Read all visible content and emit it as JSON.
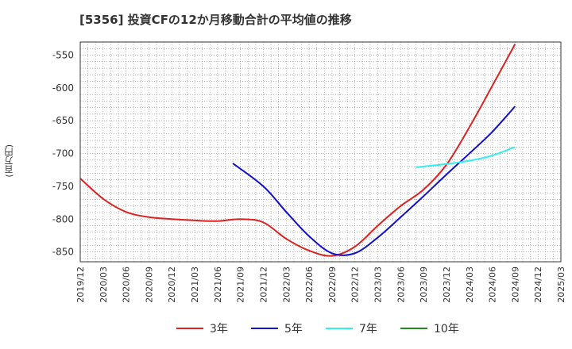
{
  "chart_data": {
    "type": "line",
    "title": "[5356]  投資CFの12か月移動合計の平均値の推移",
    "ylabel": "(百万円)",
    "xlabel": "",
    "ylim": [
      -865,
      -530
    ],
    "yticks": [
      -550,
      -600,
      -650,
      -700,
      -750,
      -800,
      -850
    ],
    "x_range": [
      "2019-12",
      "2025-03"
    ],
    "x_ticks": [
      "2019/12",
      "2020/03",
      "2020/06",
      "2020/09",
      "2020/12",
      "2021/03",
      "2021/06",
      "2021/09",
      "2021/12",
      "2022/03",
      "2022/06",
      "2022/09",
      "2022/12",
      "2023/03",
      "2023/06",
      "2023/09",
      "2023/12",
      "2024/03",
      "2024/06",
      "2024/09",
      "2024/12",
      "2025/03"
    ],
    "grid": true,
    "legend_position": "bottom",
    "series": [
      {
        "name": "3年",
        "color": "#dd2222",
        "points": [
          [
            "2019-12",
            -738
          ],
          [
            "2020-03",
            -769
          ],
          [
            "2020-06",
            -789
          ],
          [
            "2020-09",
            -797
          ],
          [
            "2020-12",
            -800
          ],
          [
            "2021-03",
            -802
          ],
          [
            "2021-06",
            -803
          ],
          [
            "2021-09",
            -800
          ],
          [
            "2021-12",
            -805
          ],
          [
            "2022-03",
            -830
          ],
          [
            "2022-06",
            -848
          ],
          [
            "2022-09",
            -856
          ],
          [
            "2022-12",
            -842
          ],
          [
            "2023-03",
            -810
          ],
          [
            "2023-06",
            -780
          ],
          [
            "2023-09",
            -755
          ],
          [
            "2023-12",
            -717
          ],
          [
            "2024-03",
            -660
          ],
          [
            "2024-06",
            -597
          ],
          [
            "2024-09",
            -533
          ]
        ]
      },
      {
        "name": "5年",
        "color": "#1111cc",
        "points": [
          [
            "2021-08",
            -715
          ],
          [
            "2021-12",
            -750
          ],
          [
            "2022-03",
            -789
          ],
          [
            "2022-06",
            -826
          ],
          [
            "2022-09",
            -852
          ],
          [
            "2022-12",
            -852
          ],
          [
            "2023-03",
            -828
          ],
          [
            "2023-06",
            -797
          ],
          [
            "2023-09",
            -765
          ],
          [
            "2023-12",
            -732
          ],
          [
            "2024-03",
            -700
          ],
          [
            "2024-06",
            -667
          ],
          [
            "2024-09",
            -628
          ]
        ]
      },
      {
        "name": "7年",
        "color": "#33eeee",
        "points": [
          [
            "2023-08",
            -721
          ],
          [
            "2023-12",
            -716
          ],
          [
            "2024-03",
            -711
          ],
          [
            "2024-06",
            -703
          ],
          [
            "2024-09",
            -690
          ]
        ]
      },
      {
        "name": "10年",
        "color": "#228822",
        "points": []
      }
    ]
  }
}
